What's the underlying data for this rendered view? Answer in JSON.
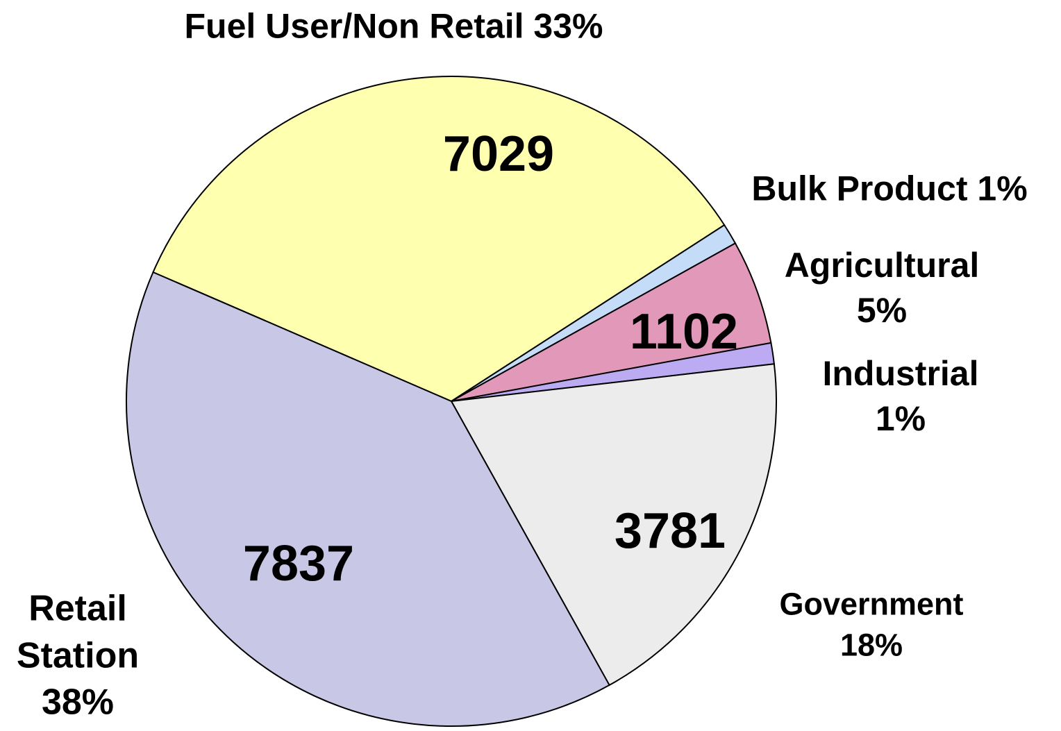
{
  "chart_data": {
    "type": "pie",
    "categories": [
      "Fuel User/Non Retail",
      "Bulk Product",
      "Agricultural",
      "Industrial",
      "Government",
      "Retail Station"
    ],
    "values": [
      33,
      1,
      5,
      1,
      18,
      38
    ],
    "value_labels": [
      "33%",
      "1%",
      "5%",
      "1%",
      "18%",
      "38%"
    ],
    "counts": [
      7029,
      null,
      1102,
      null,
      3781,
      7837
    ],
    "colors": [
      "#ffffb0",
      "#c4dcf8",
      "#e298b8",
      "#bcaaf2",
      "#ececec",
      "#c8c8e6"
    ]
  }
}
